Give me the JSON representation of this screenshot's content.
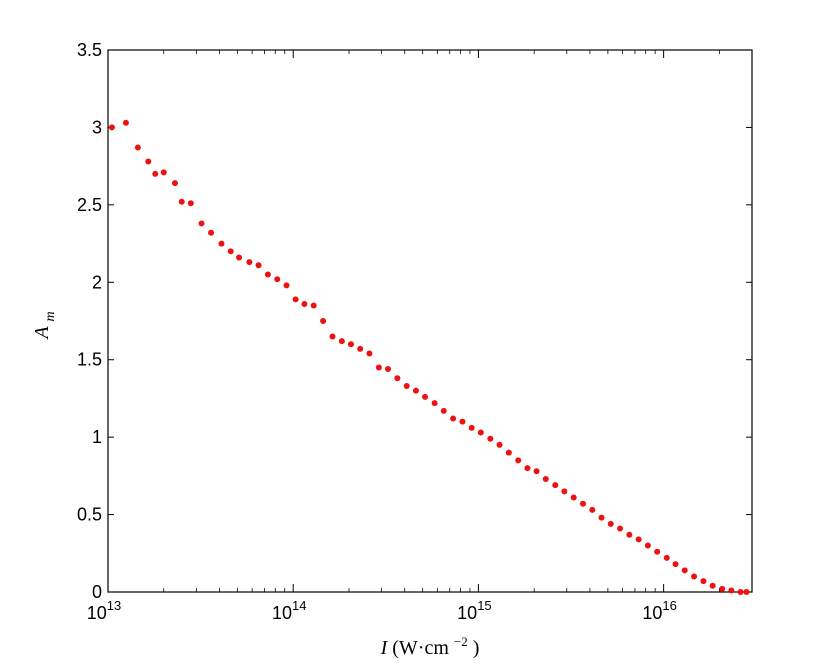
{
  "chart_data": {
    "type": "scatter",
    "title": "",
    "xlabel": {
      "symbol": "I",
      "unit_open": "(W·cm",
      "unit_exp": "−2",
      "unit_close": ")"
    },
    "ylabel": {
      "symbol": "A",
      "subscript": "m"
    },
    "x_scale": "log",
    "xlim": [
      10000000000000.0,
      3e+16
    ],
    "ylim": [
      0,
      3.5
    ],
    "grid": false,
    "legend": "none",
    "x_ticks": [
      {
        "value": 10000000000000.0,
        "base": "10",
        "exp": "13"
      },
      {
        "value": 100000000000000.0,
        "base": "10",
        "exp": "14"
      },
      {
        "value": 1000000000000000.0,
        "base": "10",
        "exp": "15"
      },
      {
        "value": 1e+16,
        "base": "10",
        "exp": "16"
      }
    ],
    "y_ticks": [
      {
        "value": 0,
        "label": "0"
      },
      {
        "value": 0.5,
        "label": "0.5"
      },
      {
        "value": 1,
        "label": "1"
      },
      {
        "value": 1.5,
        "label": "1.5"
      },
      {
        "value": 2,
        "label": "2"
      },
      {
        "value": 2.5,
        "label": "2.5"
      },
      {
        "value": 3,
        "label": "3"
      },
      {
        "value": 3.5,
        "label": "3.5"
      }
    ],
    "marker_color": "#ee1111",
    "series": [
      {
        "x": [
          10500000000000.0,
          12500000000000.0,
          14500000000000.0,
          16500000000000.0,
          18000000000000.0,
          20000000000000.0,
          23000000000000.0,
          25000000000000.0,
          28000000000000.0,
          32000000000000.0,
          36000000000000.0,
          41000000000000.0,
          46000000000000.0,
          51000000000000.0,
          58000000000000.0,
          65000000000000.0,
          73000000000000.0,
          82000000000000.0,
          92000000000000.0,
          103000000000000.0,
          115000000000000.0,
          129000000000000.0,
          145000000000000.0,
          163000000000000.0,
          183000000000000.0,
          205000000000000.0,
          230000000000000.0,
          258000000000000.0,
          290000000000000.0,
          325000000000000.0,
          365000000000000.0,
          410000000000000.0,
          460000000000000.0,
          515000000000000.0,
          580000000000000.0,
          650000000000000.0,
          730000000000000.0,
          820000000000000.0,
          920000000000000.0,
          1030000000000000.0,
          1160000000000000.0,
          1300000000000000.0,
          1460000000000000.0,
          1640000000000000.0,
          1840000000000000.0,
          2060000000000000.0,
          2310000000000000.0,
          2600000000000000.0,
          2910000000000000.0,
          3270000000000000.0,
          3670000000000000.0,
          4120000000000000.0,
          4620000000000000.0,
          5180000000000000.0,
          5820000000000000.0,
          6530000000000000.0,
          7330000000000000.0,
          8220000000000000.0,
          9230000000000000.0,
          1.04e+16,
          1.16e+16,
          1.3e+16,
          1.46e+16,
          1.64e+16,
          1.84e+16,
          2.07e+16,
          2.32e+16,
          2.6e+16,
          2.8e+16
        ],
        "y": [
          3.0,
          3.03,
          2.87,
          2.78,
          2.7,
          2.71,
          2.64,
          2.52,
          2.51,
          2.38,
          2.32,
          2.25,
          2.2,
          2.16,
          2.13,
          2.11,
          2.05,
          2.02,
          1.98,
          1.89,
          1.86,
          1.85,
          1.75,
          1.65,
          1.62,
          1.6,
          1.57,
          1.54,
          1.45,
          1.44,
          1.38,
          1.33,
          1.3,
          1.26,
          1.22,
          1.17,
          1.12,
          1.1,
          1.06,
          1.03,
          0.99,
          0.95,
          0.9,
          0.85,
          0.8,
          0.78,
          0.73,
          0.69,
          0.65,
          0.61,
          0.57,
          0.53,
          0.48,
          0.44,
          0.41,
          0.37,
          0.34,
          0.3,
          0.26,
          0.22,
          0.18,
          0.14,
          0.1,
          0.07,
          0.04,
          0.02,
          0.01,
          0.0,
          0.0
        ]
      }
    ]
  }
}
